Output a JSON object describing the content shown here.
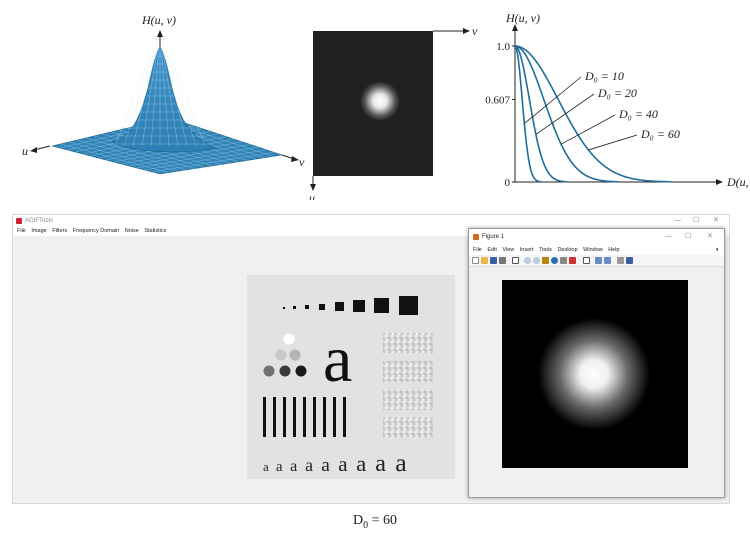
{
  "surface_figure": {
    "axis_z_label": "H(u, v)",
    "axis_u_label": "u",
    "axis_v_label": "v"
  },
  "image_figure": {
    "axis_v_label": "v",
    "axis_u_label": "u"
  },
  "chart_data": {
    "type": "line",
    "ylabel": "H(u, v)",
    "xlabel": "D(u, v)",
    "y_ticks": [
      "1.0",
      "0.607",
      "0"
    ],
    "ylim": [
      0,
      1.0
    ],
    "series": [
      {
        "name": "D₀ = 10",
        "d0": 10,
        "values": [
          [
            0,
            1.0
          ],
          [
            10,
            0.607
          ],
          [
            20,
            0.135
          ],
          [
            30,
            0.011
          ],
          [
            40,
            0.0
          ]
        ]
      },
      {
        "name": "D₀ = 20",
        "d0": 20,
        "values": [
          [
            0,
            1.0
          ],
          [
            20,
            0.607
          ],
          [
            40,
            0.135
          ],
          [
            60,
            0.011
          ],
          [
            80,
            0.0
          ]
        ]
      },
      {
        "name": "D₀ = 40",
        "d0": 40,
        "values": [
          [
            0,
            1.0
          ],
          [
            40,
            0.607
          ],
          [
            80,
            0.135
          ],
          [
            120,
            0.011
          ],
          [
            160,
            0.0
          ]
        ]
      },
      {
        "name": "D₀ = 60",
        "d0": 60,
        "values": [
          [
            0,
            1.0
          ],
          [
            60,
            0.607
          ],
          [
            120,
            0.135
          ],
          [
            180,
            0.011
          ],
          [
            240,
            0.0
          ]
        ]
      }
    ],
    "line_color": "#1f6d9a",
    "grid": false
  },
  "main_window": {
    "title": "AGIFTools",
    "menu": [
      "File",
      "Image",
      "Filters",
      "Frequency Domain",
      "Noise",
      "Statistics"
    ],
    "minimize": "—",
    "maximize": "☐",
    "close": "✕"
  },
  "pattern": {
    "glyph_big": "a",
    "glyph_row": [
      "a",
      "a",
      "a",
      "a",
      "a",
      "a",
      "a",
      "a",
      "a"
    ]
  },
  "figure_window": {
    "title": "Figure 1",
    "menu": [
      "File",
      "Edit",
      "View",
      "Insert",
      "Tools",
      "Desktop",
      "Window",
      "Help"
    ],
    "minimize": "—",
    "maximize": "☐",
    "close": "✕"
  },
  "caption": {
    "prefix": "D",
    "sub": "0",
    "suffix": " = 60"
  }
}
